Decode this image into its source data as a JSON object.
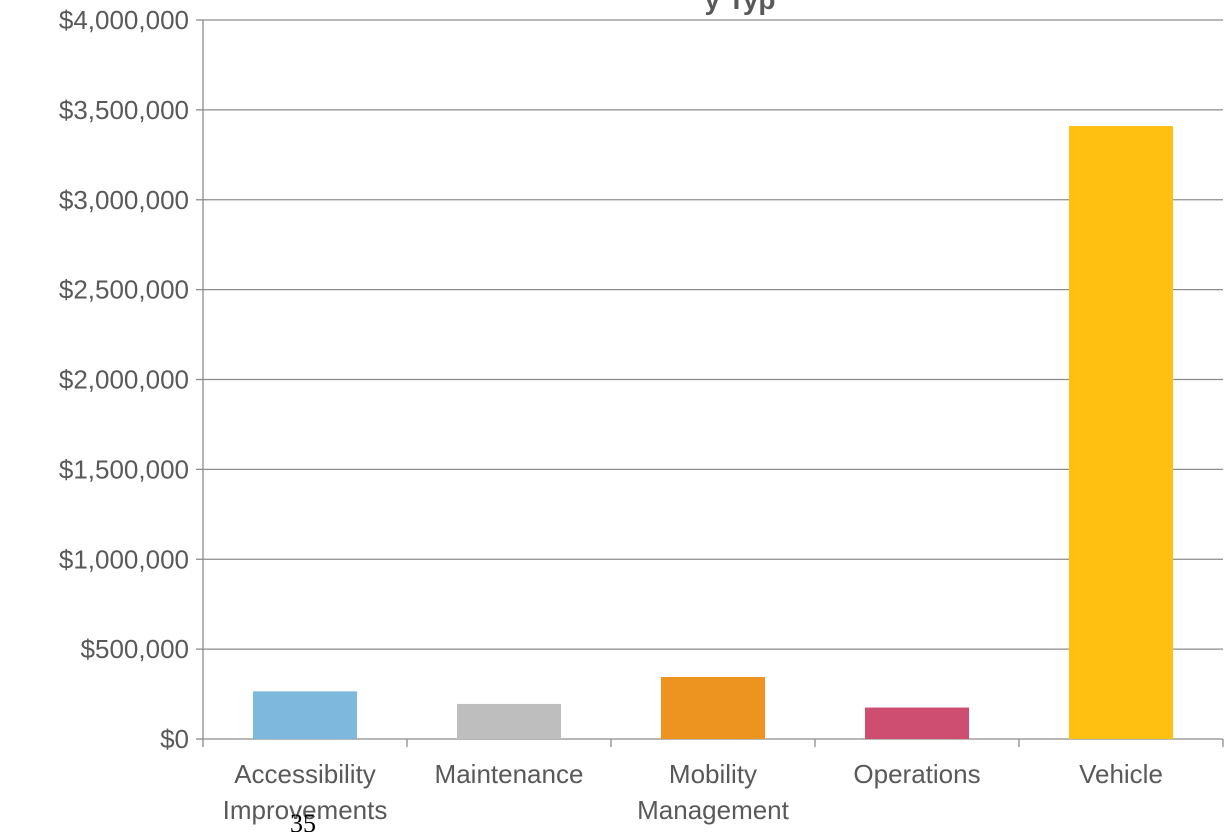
{
  "chart_data": {
    "type": "bar",
    "title_fragment": "y Typ",
    "categories": [
      [
        "Accessibility",
        "Improvements"
      ],
      [
        "Maintenance"
      ],
      [
        "Mobility",
        "Management"
      ],
      [
        "Operations"
      ],
      [
        "Vehicle"
      ]
    ],
    "values": [
      265000,
      195000,
      345000,
      175000,
      3410000
    ],
    "colors": [
      "#7EB8DC",
      "#BEBEBE",
      "#ED9420",
      "#CE4E72",
      "#FFC011"
    ],
    "ylim": [
      0,
      4000000
    ],
    "yticks": [
      0,
      500000,
      1000000,
      1500000,
      2000000,
      2500000,
      3000000,
      3500000,
      4000000
    ],
    "ytick_labels": [
      "$0",
      "$500,000",
      "$1,000,000",
      "$1,500,000",
      "$2,000,000",
      "$2,500,000",
      "$3,000,000",
      "$3,500,000",
      "$4,000,000"
    ],
    "grid": true,
    "legend": "none"
  },
  "page_number": "35"
}
